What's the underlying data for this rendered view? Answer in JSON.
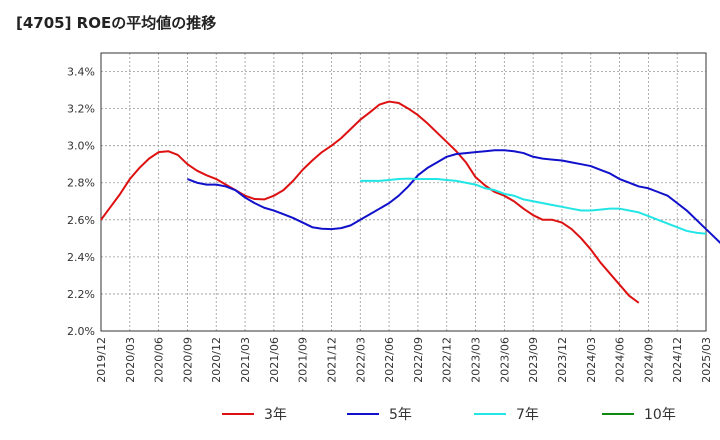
{
  "chart_data": {
    "type": "line",
    "title": "[4705]  ROEの平均値の推移",
    "xlabel": "",
    "ylabel": "",
    "ylim": [
      0.02,
      0.035
    ],
    "y_ticks": [
      0.02,
      0.022,
      0.024,
      0.026,
      0.028,
      0.03,
      0.032,
      0.034
    ],
    "y_tick_labels": [
      "2.0%",
      "2.2%",
      "2.4%",
      "2.6%",
      "2.8%",
      "3.0%",
      "3.2%",
      "3.4%"
    ],
    "x_ticks": [
      "2019/12",
      "2020/03",
      "2020/06",
      "2020/09",
      "2020/12",
      "2021/03",
      "2021/06",
      "2021/09",
      "2021/12",
      "2022/03",
      "2022/06",
      "2022/09",
      "2022/12",
      "2023/03",
      "2023/06",
      "2023/09",
      "2023/12",
      "2024/03",
      "2024/06",
      "2024/09",
      "2024/12",
      "2025/03"
    ],
    "grid": true,
    "legend_position": "bottom",
    "series": [
      {
        "name": "3年",
        "color": "#dd1111",
        "x_start_index": 0,
        "values": [
          0.026,
          0.0267,
          0.0274,
          0.0282,
          0.0288,
          0.0293,
          0.02965,
          0.0297,
          0.0295,
          0.029,
          0.02865,
          0.0284,
          0.0282,
          0.0279,
          0.0276,
          0.0273,
          0.02712,
          0.0271,
          0.0273,
          0.0276,
          0.0281,
          0.0287,
          0.0292,
          0.02965,
          0.03,
          0.0304,
          0.0309,
          0.0314,
          0.0318,
          0.03222,
          0.03238,
          0.0323,
          0.032,
          0.03165,
          0.0312,
          0.0307,
          0.0302,
          0.0297,
          0.0291,
          0.0283,
          0.02785,
          0.0275,
          0.0273,
          0.027,
          0.0266,
          0.02625,
          0.026,
          0.026,
          0.02585,
          0.0255,
          0.025,
          0.0244,
          0.0237,
          0.0231,
          0.0225,
          0.0219,
          0.02152
        ]
      },
      {
        "name": "5年",
        "color": "#1111cc",
        "x_start_index": 9,
        "values": [
          0.0282,
          0.028,
          0.0279,
          0.0279,
          0.0278,
          0.0276,
          0.0272,
          0.0269,
          0.02665,
          0.0265,
          0.0263,
          0.0261,
          0.02585,
          0.0256,
          0.02552,
          0.0255,
          0.02555,
          0.0257,
          0.026,
          0.0263,
          0.0266,
          0.0269,
          0.0273,
          0.0278,
          0.0284,
          0.0288,
          0.0291,
          0.0294,
          0.02955,
          0.0296,
          0.02965,
          0.0297,
          0.02975,
          0.02975,
          0.0297,
          0.0296,
          0.0294,
          0.0293,
          0.02925,
          0.0292,
          0.0291,
          0.029,
          0.0289,
          0.0287,
          0.0285,
          0.0282,
          0.028,
          0.0278,
          0.0277,
          0.0275,
          0.0273,
          0.0269,
          0.0265,
          0.026,
          0.0255,
          0.025,
          0.0245,
          0.02415
        ]
      },
      {
        "name": "7年",
        "color": "#22e5e5",
        "x_start_index": 27,
        "values": [
          0.0281,
          0.0281,
          0.0281,
          0.02815,
          0.0282,
          0.02822,
          0.0282,
          0.0282,
          0.0282,
          0.02815,
          0.0281,
          0.028,
          0.0279,
          0.0277,
          0.0276,
          0.0274,
          0.0273,
          0.0271,
          0.027,
          0.0269,
          0.0268,
          0.0267,
          0.0266,
          0.0265,
          0.0265,
          0.02655,
          0.0266,
          0.0266,
          0.0265,
          0.0264,
          0.0262,
          0.026,
          0.0258,
          0.0256,
          0.0254,
          0.0253,
          0.02525
        ]
      },
      {
        "name": "10年",
        "color": "#118811",
        "x_start_index": 0,
        "values": []
      }
    ]
  }
}
